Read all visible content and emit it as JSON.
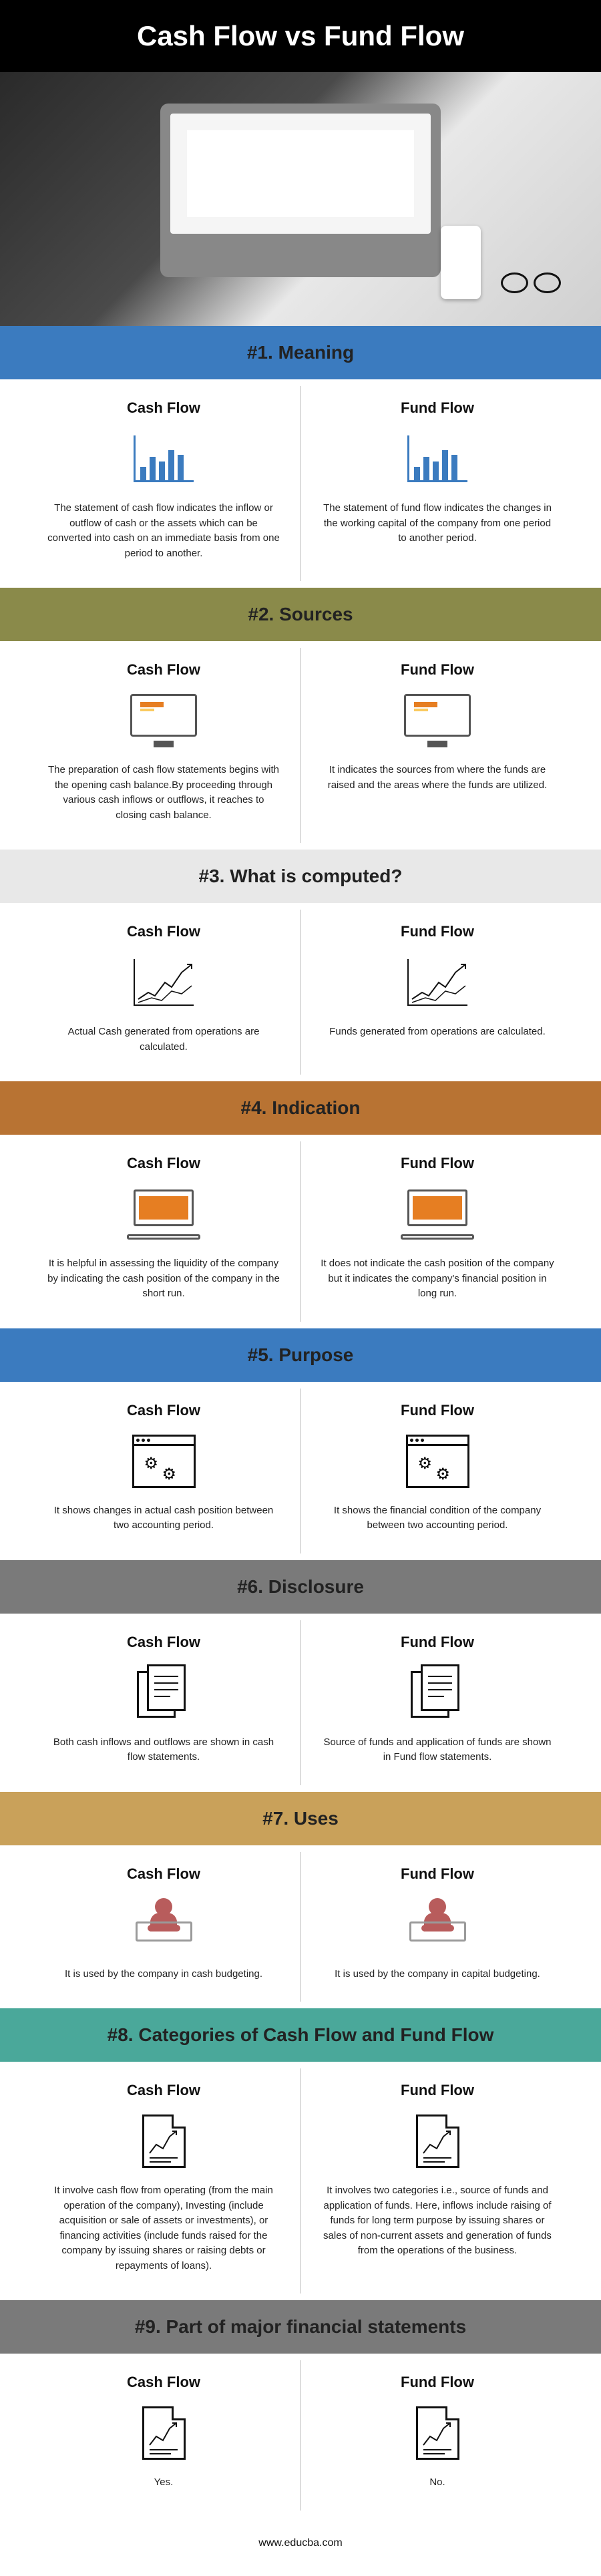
{
  "title": "Cash Flow vs Fund Flow",
  "footer": "www.educba.com",
  "leftLabel": "Cash Flow",
  "rightLabel": "Fund Flow",
  "sections": [
    {
      "title": "#1. Meaning",
      "bg": "#3b7bbf",
      "iconColor": "#3b7bbf",
      "iconType": "bar",
      "left": "The statement of cash flow indicates the inflow or outflow of cash or the assets which can be converted into cash on an immediate basis from one period to another.",
      "right": "The statement of fund flow indicates the changes in the working capital of the company from one period to another period."
    },
    {
      "title": "#2. Sources",
      "bg": "#8a8a4a",
      "iconColor": "#e67e22",
      "iconType": "monitor",
      "left": "The preparation of cash flow statements begins with the opening cash balance.By proceeding through various cash inflows or outflows, it reaches to closing cash balance.",
      "right": "It indicates the sources from where the funds are raised and the areas where the funds are utilized."
    },
    {
      "title": "#3. What is computed?",
      "bg": "#e8e8e8",
      "iconColor": "#111111",
      "iconType": "linechart",
      "left": "Actual Cash generated from operations are calculated.",
      "right": "Funds generated from operations are calculated."
    },
    {
      "title": "#4. Indication",
      "bg": "#b87333",
      "iconColor": "#e67e22",
      "iconType": "laptop",
      "left": "It is helpful in assessing the liquidity of the company by indicating the cash position of the company in the short run.",
      "right": "It does not indicate the cash position of the company but it indicates the company's financial position in long run."
    },
    {
      "title": "#5. Purpose",
      "bg": "#3b7bbf",
      "iconColor": "#111111",
      "iconType": "wingear",
      "left": "It shows changes in actual cash position between two accounting period.",
      "right": "It shows the financial condition of the company between two accounting period."
    },
    {
      "title": "#6. Disclosure",
      "bg": "#7a7a7a",
      "iconColor": "#111111",
      "iconType": "docs",
      "left": "Both cash inflows and outflows are shown in cash flow statements.",
      "right": "Source of funds and application of funds are shown in Fund flow statements."
    },
    {
      "title": "#7. Uses",
      "bg": "#c9a15a",
      "iconColor": "#b85c5c",
      "iconType": "usertop",
      "left": "It is used by the company in cash budgeting.",
      "right": "It is used by the company in capital budgeting."
    },
    {
      "title": "#8. Categories of Cash Flow and Fund Flow",
      "bg": "#4aa89a",
      "iconColor": "#111111",
      "iconType": "docchart",
      "left": "It involve cash flow from operating (from the main operation of the company), Investing (include acquisition or sale of assets or investments), or financing activities (include funds raised for the company by issuing shares or raising debts or repayments of loans).",
      "right": "It involves two categories i.e., source of funds and application of funds. Here, inflows include raising of funds for long term purpose by issuing shares or sales of non-current assets and generation of funds from the operations of the business."
    },
    {
      "title": "#9. Part of major financial statements",
      "bg": "#7a7a7a",
      "iconColor": "#111111",
      "iconType": "docchart",
      "left": "Yes.",
      "right": "No."
    }
  ]
}
